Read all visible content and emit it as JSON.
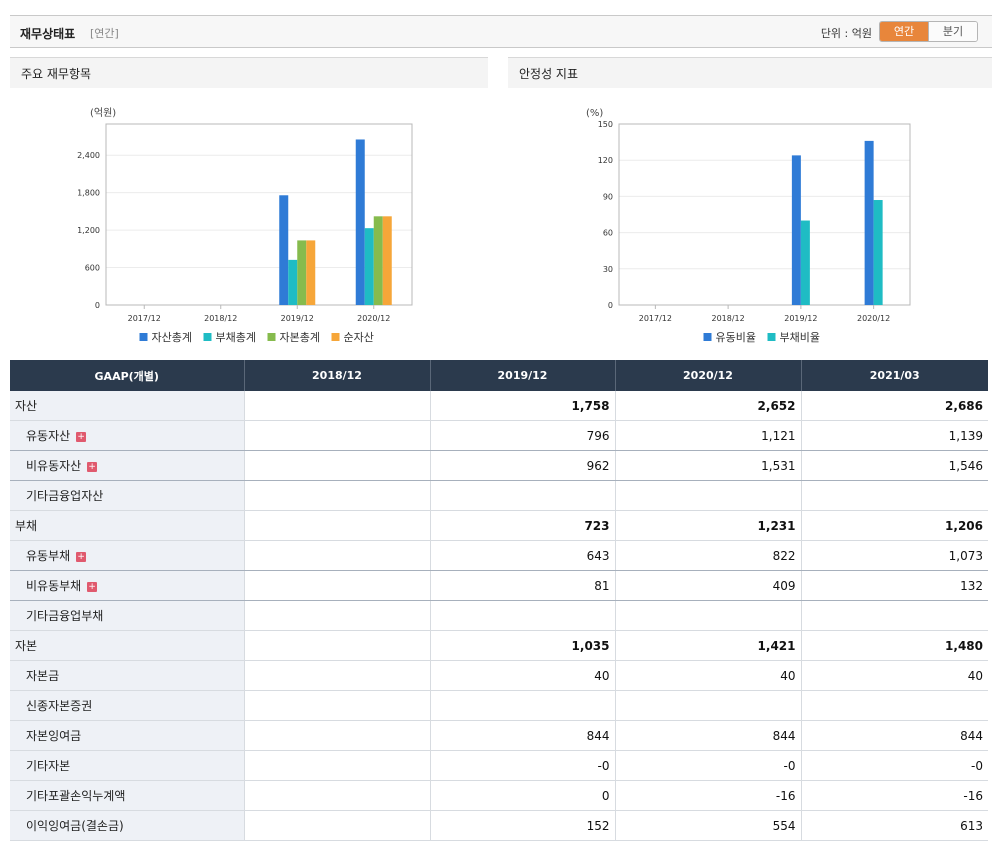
{
  "header": {
    "title": "재무상태표",
    "subtitle": "[연간]",
    "unit_label": "단위 : 억원",
    "toggle": [
      {
        "label": "연간",
        "active": true
      },
      {
        "label": "분기",
        "active": false
      }
    ]
  },
  "panels": {
    "left_title": "주요 재무항목",
    "right_title": "안정성 지표"
  },
  "chart_data": [
    {
      "type": "bar",
      "ylabel": "(억원)",
      "categories": [
        "2017/12",
        "2018/12",
        "2019/12",
        "2020/12"
      ],
      "ylim": [
        0,
        2900
      ],
      "yticks": [
        "0",
        "600",
        "1,200",
        "1,800",
        "2,400"
      ],
      "ytick_values": [
        0,
        600,
        1200,
        1800,
        2400
      ],
      "legend_position": "bottom",
      "grid": true,
      "series": [
        {
          "name": "자산총계",
          "color": "#2f7bd6",
          "values": [
            null,
            null,
            1758,
            2652
          ]
        },
        {
          "name": "부채총계",
          "color": "#1fbcc4",
          "values": [
            null,
            null,
            723,
            1231
          ]
        },
        {
          "name": "자본총계",
          "color": "#86bb4d",
          "values": [
            null,
            null,
            1035,
            1421
          ]
        },
        {
          "name": "순자산",
          "color": "#f6a639",
          "values": [
            null,
            null,
            1035,
            1421
          ]
        }
      ]
    },
    {
      "type": "bar",
      "ylabel": "(%)",
      "categories": [
        "2017/12",
        "2018/12",
        "2019/12",
        "2020/12"
      ],
      "ylim": [
        0,
        150
      ],
      "yticks": [
        "0",
        "30",
        "60",
        "90",
        "120",
        "150"
      ],
      "ytick_values": [
        0,
        30,
        60,
        90,
        120,
        150
      ],
      "legend_position": "bottom",
      "grid": true,
      "series": [
        {
          "name": "유동비율",
          "color": "#2f7bd6",
          "values": [
            null,
            null,
            124,
            136
          ]
        },
        {
          "name": "부채비율",
          "color": "#1fbcc4",
          "values": [
            null,
            null,
            70,
            87
          ]
        }
      ]
    }
  ],
  "table": {
    "columns": [
      "GAAP(개별)",
      "2018/12",
      "2019/12",
      "2020/12",
      "2021/03"
    ],
    "rows": [
      {
        "label": "자산",
        "level": 0,
        "bold": true,
        "values": [
          "",
          "1,758",
          "2,652",
          "2,686"
        ]
      },
      {
        "label": "유동자산",
        "level": 1,
        "expand": true,
        "values": [
          "",
          "796",
          "1,121",
          "1,139"
        ]
      },
      {
        "label": "비유동자산",
        "level": 1,
        "expand": true,
        "values": [
          "",
          "962",
          "1,531",
          "1,546"
        ]
      },
      {
        "label": "기타금융업자산",
        "level": 1,
        "values": [
          "",
          "",
          "",
          ""
        ]
      },
      {
        "label": "부채",
        "level": 0,
        "bold": true,
        "values": [
          "",
          "723",
          "1,231",
          "1,206"
        ]
      },
      {
        "label": "유동부채",
        "level": 1,
        "expand": true,
        "values": [
          "",
          "643",
          "822",
          "1,073"
        ]
      },
      {
        "label": "비유동부채",
        "level": 1,
        "expand": true,
        "values": [
          "",
          "81",
          "409",
          "132"
        ]
      },
      {
        "label": "기타금융업부채",
        "level": 1,
        "values": [
          "",
          "",
          "",
          ""
        ]
      },
      {
        "label": "자본",
        "level": 0,
        "bold": true,
        "values": [
          "",
          "1,035",
          "1,421",
          "1,480"
        ]
      },
      {
        "label": "자본금",
        "level": 1,
        "values": [
          "",
          "40",
          "40",
          "40"
        ]
      },
      {
        "label": "신종자본증권",
        "level": 1,
        "values": [
          "",
          "",
          "",
          ""
        ]
      },
      {
        "label": "자본잉여금",
        "level": 1,
        "values": [
          "",
          "844",
          "844",
          "844"
        ]
      },
      {
        "label": "기타자본",
        "level": 1,
        "values": [
          "",
          "-0",
          "-0",
          "-0"
        ]
      },
      {
        "label": "기타포괄손익누계액",
        "level": 1,
        "values": [
          "",
          "0",
          "-16",
          "-16"
        ]
      },
      {
        "label": "이익잉여금(결손금)",
        "level": 1,
        "values": [
          "",
          "152",
          "554",
          "613"
        ]
      }
    ]
  },
  "icons": {
    "expand": "plus-square-icon"
  }
}
